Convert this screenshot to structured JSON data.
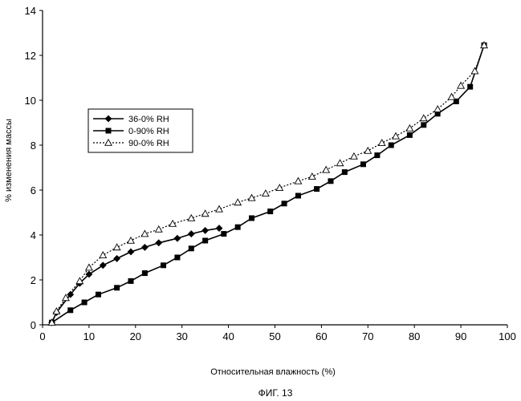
{
  "chart_data": {
    "type": "line",
    "title": "",
    "caption": "ФИГ. 13",
    "xlabel": "Относительная влажность  (%)",
    "ylabel": "% изменения  массы",
    "xlim": [
      0,
      100
    ],
    "ylim": [
      0,
      14
    ],
    "xticks": [
      0,
      10,
      20,
      30,
      40,
      50,
      60,
      70,
      80,
      90,
      100
    ],
    "yticks": [
      0,
      2,
      4,
      6,
      8,
      10,
      12,
      14
    ],
    "grid": false,
    "legend_position": "upper-left",
    "series": [
      {
        "name": "36-0% RH",
        "marker": "diamond",
        "line": "solid",
        "color": "#000000",
        "x": [
          2,
          3,
          6,
          8,
          10,
          13,
          16,
          19,
          22,
          25,
          29,
          32,
          35,
          38
        ],
        "y": [
          0.1,
          0.55,
          1.35,
          1.85,
          2.25,
          2.65,
          2.95,
          3.25,
          3.45,
          3.65,
          3.85,
          4.05,
          4.2,
          4.3
        ]
      },
      {
        "name": "0-90% RH",
        "marker": "square",
        "line": "solid",
        "color": "#000000",
        "x": [
          2,
          6,
          9,
          12,
          16,
          19,
          22,
          26,
          29,
          32,
          35,
          39,
          42,
          45,
          49,
          52,
          55,
          59,
          62,
          65,
          69,
          72,
          75,
          79,
          82,
          85,
          89,
          92,
          95
        ],
        "y": [
          0.1,
          0.65,
          1.0,
          1.35,
          1.65,
          1.95,
          2.3,
          2.65,
          3.0,
          3.4,
          3.75,
          4.05,
          4.35,
          4.75,
          5.05,
          5.4,
          5.75,
          6.05,
          6.4,
          6.8,
          7.15,
          7.55,
          8.0,
          8.45,
          8.9,
          9.4,
          9.95,
          10.6,
          12.45
        ]
      },
      {
        "name": "90-0% RH",
        "marker": "triangle",
        "line": "dotted",
        "color": "#000000",
        "x": [
          2,
          3,
          5,
          8,
          10,
          13,
          16,
          19,
          22,
          25,
          28,
          32,
          35,
          38,
          42,
          45,
          48,
          51,
          55,
          58,
          61,
          64,
          67,
          70,
          73,
          76,
          79,
          82,
          85,
          88,
          90,
          93,
          95
        ],
        "y": [
          0.1,
          0.6,
          1.2,
          1.95,
          2.55,
          3.1,
          3.45,
          3.75,
          4.05,
          4.25,
          4.5,
          4.75,
          4.95,
          5.15,
          5.45,
          5.65,
          5.85,
          6.1,
          6.4,
          6.6,
          6.9,
          7.2,
          7.5,
          7.75,
          8.1,
          8.4,
          8.75,
          9.2,
          9.6,
          10.15,
          10.65,
          11.3,
          12.45
        ]
      }
    ]
  }
}
